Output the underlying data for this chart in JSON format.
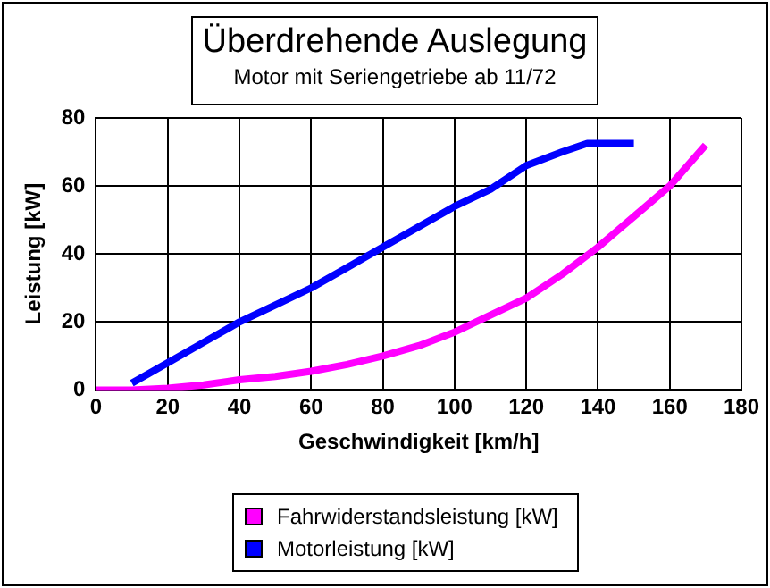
{
  "chart_data": {
    "type": "line",
    "title": "Überdrehende Auslegung",
    "subtitle": "Motor mit Seriengetriebe ab 11/72",
    "xlabel": "Geschwindigkeit [km/h]",
    "ylabel": "Leistung [kW]",
    "xlim": [
      0,
      180
    ],
    "xticks": [
      0,
      20,
      40,
      60,
      80,
      100,
      120,
      140,
      160,
      180
    ],
    "ylim": [
      0,
      80
    ],
    "yticks": [
      0,
      20,
      40,
      60,
      80
    ],
    "grid": true,
    "legend": "bottom",
    "line_style": "solid",
    "series": [
      {
        "name": "Fahrwiderstandsleistung [kW]",
        "color": "#ff00ff",
        "x": [
          0,
          10,
          20,
          30,
          40,
          50,
          60,
          70,
          80,
          90,
          100,
          110,
          120,
          130,
          140,
          150,
          160,
          170
        ],
        "values": [
          0,
          0,
          0.5,
          1.5,
          3,
          4,
          5.5,
          7.5,
          10,
          13,
          17,
          22,
          27,
          34,
          42,
          51,
          60,
          72
        ]
      },
      {
        "name": "Motorleistung [kW]",
        "color": "#0000ff",
        "x": [
          10,
          20,
          30,
          40,
          50,
          60,
          70,
          80,
          90,
          100,
          110,
          120,
          130,
          137,
          150
        ],
        "values": [
          2,
          8,
          14,
          20,
          25,
          30,
          36,
          42,
          48,
          54,
          59,
          66,
          70,
          72.5,
          72.5
        ]
      }
    ]
  }
}
